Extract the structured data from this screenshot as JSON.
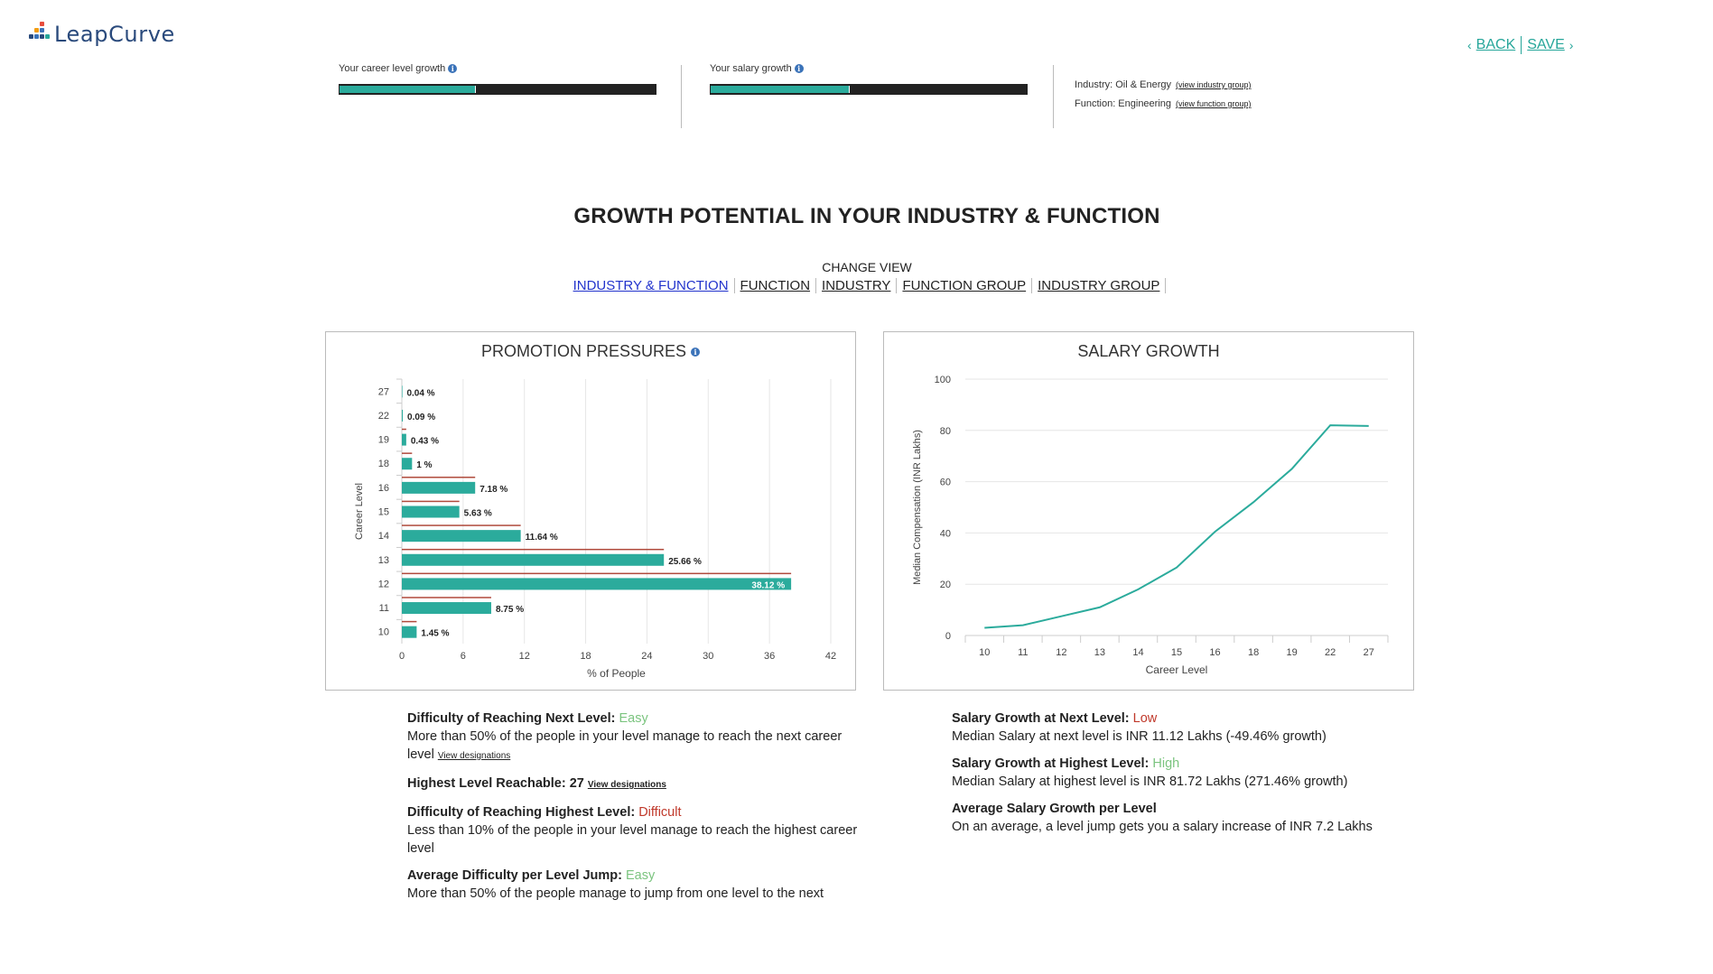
{
  "brand": {
    "name_part1": "Leap",
    "name_part2": "Curve"
  },
  "nav": {
    "back": "BACK",
    "save": "SAVE"
  },
  "career_growth": {
    "label": "Your career level growth",
    "progress_percent": 43
  },
  "salary_growth": {
    "label": "Your salary growth",
    "progress_percent": 44
  },
  "industry_info": {
    "industry_line": "Industry: Oil & Energy",
    "industry_link": "(view industry group)",
    "function_line": "Function: Engineering",
    "function_link": "(view function group)"
  },
  "main_title": "GROWTH POTENTIAL IN YOUR INDUSTRY & FUNCTION",
  "change_view": {
    "label": "CHANGE VIEW",
    "tabs": [
      "INDUSTRY & FUNCTION",
      "FUNCTION",
      "INDUSTRY",
      "FUNCTION GROUP",
      "INDUSTRY GROUP"
    ],
    "active": "INDUSTRY & FUNCTION"
  },
  "chart_data": [
    {
      "type": "bar",
      "orientation": "horizontal",
      "title": "PROMOTION PRESSURES",
      "xlabel": "% of People",
      "ylabel": "Career Level",
      "categories": [
        "27",
        "22",
        "19",
        "18",
        "16",
        "15",
        "14",
        "13",
        "12",
        "11",
        "10"
      ],
      "values": [
        0.04,
        0.09,
        0.43,
        1,
        7.18,
        5.63,
        11.64,
        25.66,
        38.12,
        8.75,
        1.45
      ],
      "data_labels": [
        "0.04 %",
        "0.09 %",
        "0.43 %",
        "1 %",
        "7.18 %",
        "5.63 %",
        "11.64 %",
        "25.66 %",
        "38.12 %",
        "8.75 %",
        "1.45 %"
      ],
      "xticks": [
        0,
        6,
        12,
        18,
        24,
        30,
        36,
        42
      ],
      "xlim": [
        0,
        42
      ],
      "bar_color": "#2bab9c",
      "grid": true
    },
    {
      "type": "line",
      "title": "SALARY GROWTH",
      "xlabel": "Career Level",
      "ylabel": "Median Compensation (INR Lakhs)",
      "x": [
        "10",
        "11",
        "12",
        "13",
        "14",
        "15",
        "16",
        "18",
        "19",
        "22",
        "27"
      ],
      "values": [
        3,
        4,
        7.5,
        11,
        18,
        26.5,
        40.5,
        52,
        65,
        82,
        81.72
      ],
      "yticks": [
        0,
        20,
        40,
        60,
        80,
        100
      ],
      "ylim": [
        0,
        100
      ],
      "line_color": "#2bab9c",
      "grid": true
    }
  ],
  "promotion_details": [
    {
      "head": "Difficulty of Reaching Next Level:",
      "status": "Easy",
      "status_type": "easy",
      "text": "More than 50% of the people in your level manage to reach the next career level",
      "link": "View designations"
    },
    {
      "head": "Highest Level Reachable: 27",
      "status": "",
      "status_type": "",
      "text": "",
      "link": "View designations"
    },
    {
      "head": "Difficulty of Reaching Highest Level:",
      "status": "Difficult",
      "status_type": "hard",
      "text": "Less than 10% of the people in your level manage to reach the highest career level",
      "link": ""
    },
    {
      "head": "Average Difficulty per Level Jump:",
      "status": "Easy",
      "status_type": "easy",
      "text": "More than 50% of the people manage to jump from one level to the next",
      "link": ""
    }
  ],
  "salary_details": [
    {
      "head": "Salary Growth at Next Level:",
      "status": "Low",
      "status_type": "hard",
      "text": "Median Salary at next level is INR 11.12 Lakhs (-49.46% growth)",
      "link": ""
    },
    {
      "head": "Salary Growth at Highest Level:",
      "status": "High",
      "status_type": "easy",
      "text": "Median Salary at highest level is INR 81.72 Lakhs (271.46% growth)",
      "link": ""
    },
    {
      "head": "Average Salary Growth per Level",
      "status": "",
      "status_type": "",
      "text": "On an average, a level jump gets you a salary increase of INR 7.2 Lakhs",
      "link": ""
    }
  ]
}
